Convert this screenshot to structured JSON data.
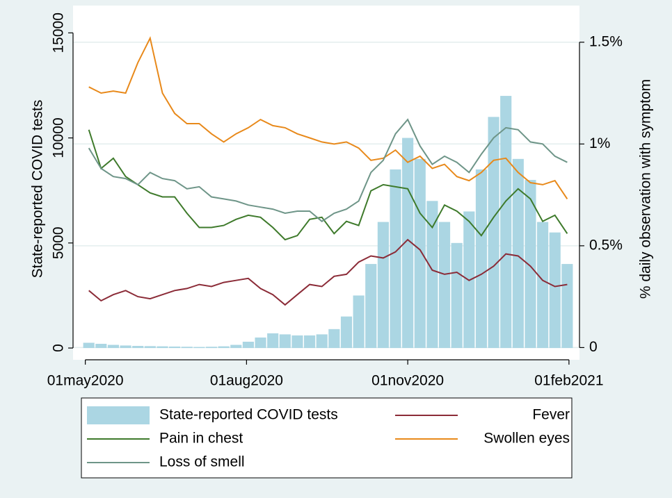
{
  "chart_data": {
    "type": "combo",
    "y_label": "State-reported COVID tests",
    "y2_label": "% daily observation with symptom",
    "x": [
      "2020-05-03",
      "2020-05-10",
      "2020-05-17",
      "2020-05-24",
      "2020-05-31",
      "2020-06-07",
      "2020-06-14",
      "2020-06-21",
      "2020-06-28",
      "2020-07-05",
      "2020-07-12",
      "2020-07-19",
      "2020-07-26",
      "2020-08-02",
      "2020-08-09",
      "2020-08-16",
      "2020-08-23",
      "2020-08-30",
      "2020-09-06",
      "2020-09-13",
      "2020-09-20",
      "2020-09-27",
      "2020-10-04",
      "2020-10-11",
      "2020-10-18",
      "2020-10-25",
      "2020-11-01",
      "2020-11-08",
      "2020-11-15",
      "2020-11-22",
      "2020-11-29",
      "2020-12-06",
      "2020-12-13",
      "2020-12-20",
      "2020-12-27",
      "2021-01-03",
      "2021-01-10",
      "2021-01-17",
      "2021-01-24",
      "2021-01-31"
    ],
    "xlim": [
      "2020-04-24",
      "2021-02-07"
    ],
    "xticks": [
      {
        "value": "2020-05-01",
        "label": "01may2020"
      },
      {
        "value": "2020-08-01",
        "label": "01aug2020"
      },
      {
        "value": "2020-11-01",
        "label": "01nov2020"
      },
      {
        "value": "2021-02-01",
        "label": "01feb2021"
      }
    ],
    "ylim": [
      -560,
      16300
    ],
    "yticks": [
      0,
      5000,
      10000,
      15000
    ],
    "y2lim": [
      -0.06,
      1.68
    ],
    "y2ticks": [
      0,
      {
        "value": 0.5,
        "label": "0.5%"
      },
      {
        "value": 1,
        "label": "1%"
      },
      {
        "value": 1.5,
        "label": "1.5%"
      }
    ],
    "grid": true,
    "series": [
      {
        "name": "State-reported COVID tests",
        "type": "bar",
        "color": "#abd6e3",
        "values": [
          250,
          200,
          150,
          120,
          100,
          90,
          80,
          70,
          60,
          50,
          60,
          80,
          150,
          300,
          500,
          700,
          650,
          600,
          600,
          650,
          900,
          1500,
          2500,
          4000,
          6000,
          8500,
          10000,
          9000,
          7000,
          6000,
          5000,
          6500,
          8500,
          11000,
          12000,
          9000,
          8000,
          6000,
          5500,
          4000
        ]
      },
      {
        "name": "Fever",
        "type": "line",
        "axis": "y2",
        "color": "#8b2b37",
        "values": [
          0.28,
          0.23,
          0.26,
          0.28,
          0.25,
          0.24,
          0.26,
          0.28,
          0.29,
          0.31,
          0.3,
          0.32,
          0.33,
          0.34,
          0.29,
          0.26,
          0.21,
          0.26,
          0.31,
          0.3,
          0.35,
          0.36,
          0.42,
          0.45,
          0.44,
          0.47,
          0.53,
          0.48,
          0.38,
          0.36,
          0.37,
          0.33,
          0.36,
          0.4,
          0.46,
          0.45,
          0.4,
          0.33,
          0.3,
          0.31
        ]
      },
      {
        "name": "Pain in chest",
        "type": "line",
        "axis": "y2",
        "color": "#3e7a2b",
        "values": [
          1.07,
          0.88,
          0.93,
          0.84,
          0.8,
          0.76,
          0.74,
          0.74,
          0.66,
          0.59,
          0.59,
          0.6,
          0.63,
          0.65,
          0.64,
          0.59,
          0.53,
          0.55,
          0.63,
          0.64,
          0.56,
          0.62,
          0.6,
          0.77,
          0.8,
          0.79,
          0.78,
          0.66,
          0.59,
          0.7,
          0.67,
          0.62,
          0.55,
          0.64,
          0.72,
          0.78,
          0.73,
          0.62,
          0.65,
          0.56
        ]
      },
      {
        "name": "Swollen eyes",
        "type": "line",
        "axis": "y2",
        "color": "#e8891a",
        "values": [
          1.28,
          1.25,
          1.26,
          1.25,
          1.4,
          1.52,
          1.25,
          1.15,
          1.1,
          1.1,
          1.05,
          1.01,
          1.05,
          1.08,
          1.12,
          1.09,
          1.08,
          1.05,
          1.03,
          1.01,
          1.0,
          1.01,
          0.98,
          0.92,
          0.93,
          0.97,
          0.91,
          0.94,
          0.88,
          0.9,
          0.84,
          0.82,
          0.86,
          0.92,
          0.93,
          0.86,
          0.81,
          0.8,
          0.82,
          0.73
        ]
      },
      {
        "name": "Loss of smell",
        "type": "line",
        "axis": "y2",
        "color": "#6e9588",
        "values": [
          0.98,
          0.88,
          0.84,
          0.83,
          0.8,
          0.86,
          0.83,
          0.82,
          0.78,
          0.79,
          0.74,
          0.73,
          0.72,
          0.7,
          0.69,
          0.68,
          0.66,
          0.67,
          0.67,
          0.62,
          0.66,
          0.68,
          0.72,
          0.86,
          0.92,
          1.05,
          1.12,
          0.99,
          0.9,
          0.94,
          0.91,
          0.86,
          0.95,
          1.03,
          1.08,
          1.07,
          1.01,
          1.0,
          0.94,
          0.91
        ]
      }
    ]
  }
}
